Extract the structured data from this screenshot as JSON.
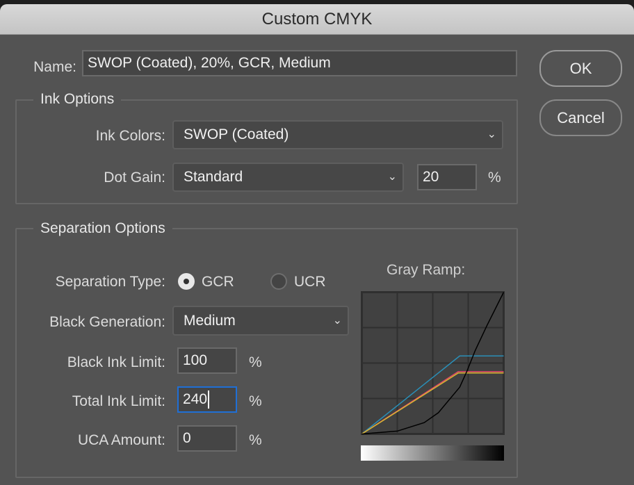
{
  "window": {
    "title": "Custom CMYK"
  },
  "name": {
    "label": "Name:",
    "value": "SWOP (Coated), 20%, GCR, Medium"
  },
  "buttons": {
    "ok": "OK",
    "cancel": "Cancel"
  },
  "ink_options": {
    "title": "Ink Options",
    "ink_colors_label": "Ink Colors:",
    "ink_colors_value": "SWOP (Coated)",
    "dot_gain_label": "Dot Gain:",
    "dot_gain_value": "Standard",
    "dot_gain_amount": "20",
    "percent": "%"
  },
  "separation_options": {
    "title": "Separation Options",
    "type_label": "Separation Type:",
    "gcr": "GCR",
    "ucr": "UCR",
    "selected": "GCR",
    "black_generation_label": "Black Generation:",
    "black_generation_value": "Medium",
    "black_ink_limit_label": "Black Ink Limit:",
    "black_ink_limit": "100",
    "total_ink_limit_label": "Total Ink Limit:",
    "total_ink_limit": "240",
    "uca_amount_label": "UCA Amount:",
    "uca_amount": "0",
    "percent": "%"
  },
  "gray_ramp": {
    "title": "Gray Ramp:",
    "chart_data": {
      "type": "line",
      "xlim": [
        0,
        100
      ],
      "ylim": [
        0,
        100
      ],
      "grid": true,
      "series": [
        {
          "color": "#2a8fb8",
          "points": [
            [
              0,
              0
            ],
            [
              69,
              55
            ],
            [
              100,
              55
            ]
          ]
        },
        {
          "color": "#e04868",
          "points": [
            [
              0,
              0
            ],
            [
              68,
              44
            ],
            [
              100,
              44
            ]
          ]
        },
        {
          "color": "#d8b830",
          "points": [
            [
              0,
              0
            ],
            [
              68,
              43
            ],
            [
              100,
              43
            ]
          ]
        },
        {
          "color": "#000000",
          "points": [
            [
              0,
              0
            ],
            [
              25,
              2
            ],
            [
              44,
              8
            ],
            [
              54,
              15
            ],
            [
              64,
              27
            ],
            [
              69,
              33
            ],
            [
              74,
              44
            ],
            [
              80,
              59
            ],
            [
              88,
              76
            ],
            [
              100,
              100
            ]
          ]
        }
      ]
    }
  }
}
